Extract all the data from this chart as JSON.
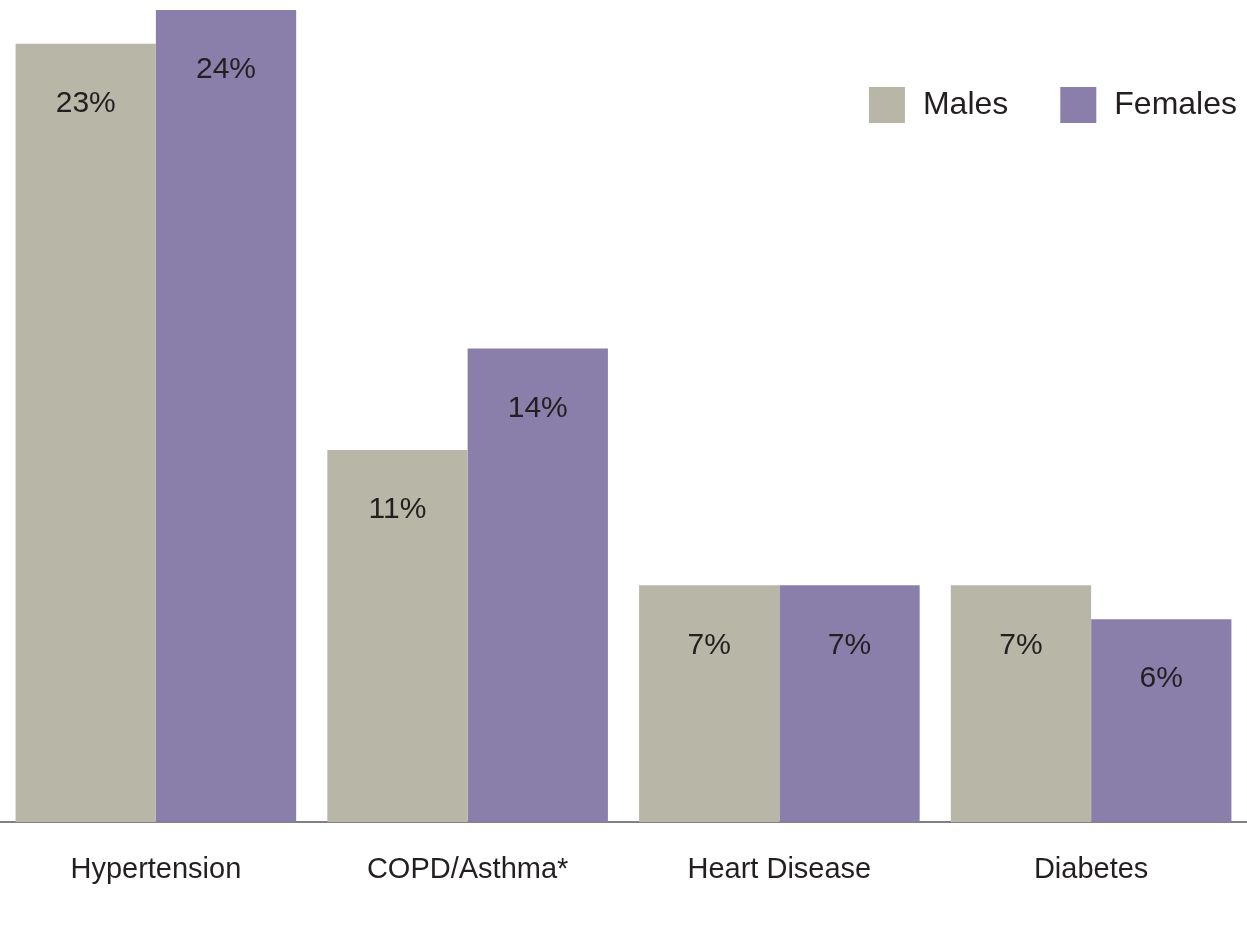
{
  "chart_data": {
    "type": "bar",
    "categories": [
      "Hypertension",
      "COPD/Asthma*",
      "Heart Disease",
      "Diabetes"
    ],
    "series": [
      {
        "name": "Males",
        "color": "#b8b6a7",
        "values": [
          23,
          11,
          7,
          7
        ],
        "value_labels": [
          "23%",
          "11%",
          "7%",
          "7%"
        ]
      },
      {
        "name": "Females",
        "color": "#8a7fab",
        "values": [
          24,
          14,
          7,
          6
        ],
        "value_labels": [
          "24%",
          "14%",
          "7%",
          "6%"
        ]
      }
    ],
    "legend": "top right"
  }
}
